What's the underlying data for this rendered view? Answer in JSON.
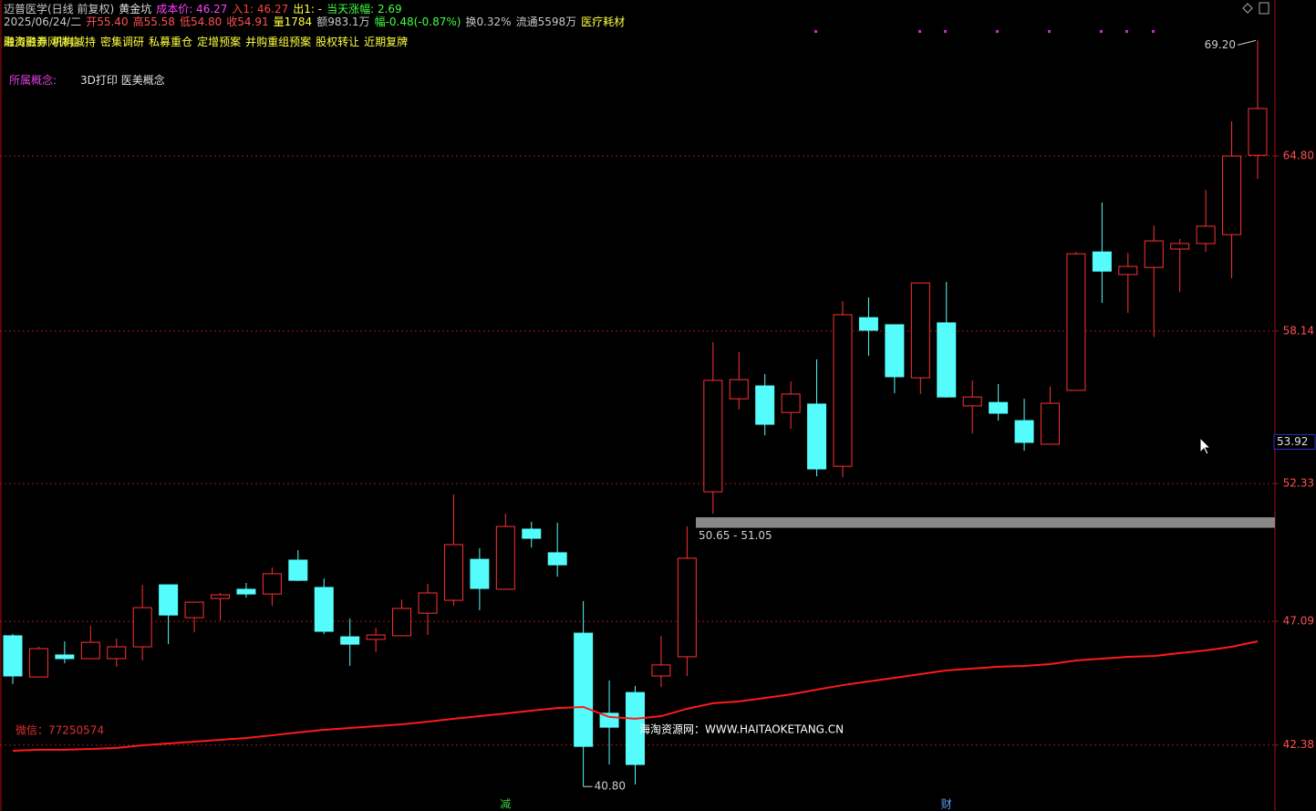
{
  "header": {
    "line1": [
      {
        "text": "迈普医学(日线 前复权)",
        "color": "#c8c8c8"
      },
      {
        "text": "黄金坑",
        "color": "#e0e0e0"
      },
      {
        "text": "成本价: 46.27",
        "color": "#ff40ff"
      },
      {
        "text": "入1: 46.27",
        "color": "#ff4040"
      },
      {
        "text": "出1: -",
        "color": "#ffff40"
      },
      {
        "text": "当天涨幅: 2.69",
        "color": "#40ff40"
      }
    ],
    "line2": [
      {
        "text": "2025/06/24/二",
        "color": "#c8c8c8"
      },
      {
        "text": "开55.40",
        "color": "#ff5050"
      },
      {
        "text": "高55.58",
        "color": "#ff5050"
      },
      {
        "text": "低54.80",
        "color": "#ff5050"
      },
      {
        "text": "收54.91",
        "color": "#ff5050"
      },
      {
        "text": "量1784",
        "color": "#ffff40"
      },
      {
        "text": "额983.1万",
        "color": "#c8c8c8"
      },
      {
        "text": "幅-0.48(-0.87%)",
        "color": "#40ff40"
      },
      {
        "text": "换0.32%",
        "color": "#c8c8c8"
      },
      {
        "text": "流通5598万",
        "color": "#c8c8c8"
      },
      {
        "text": "医疗耗材",
        "color": "#ffff40"
      }
    ],
    "overlay": "海淘资源网微信",
    "tags": [
      "融资融券",
      "机构减持",
      "密集调研",
      "私募重仓",
      "定增预案",
      "并购重组预案",
      "股权转让",
      "近期复牌"
    ],
    "concept_label": "所属概念:",
    "concepts": "3D打印 医美概念"
  },
  "chart_data": {
    "type": "candlestick",
    "categories": [
      null,
      null,
      null,
      null,
      null,
      null,
      null,
      null,
      null,
      null,
      null,
      null,
      null,
      null,
      null,
      null,
      null,
      null,
      null,
      "减",
      null,
      null,
      null,
      null,
      null,
      null,
      null,
      null,
      null,
      null,
      null,
      null,
      null,
      null,
      null,
      null,
      "财",
      null,
      null,
      null,
      null,
      null,
      null,
      null,
      null,
      null,
      null,
      null,
      null
    ],
    "open": [
      46.54,
      44.97,
      45.81,
      45.67,
      45.67,
      46.12,
      48.48,
      47.23,
      47.96,
      48.31,
      48.13,
      49.42,
      48.38,
      46.5,
      46.4,
      46.54,
      47.4,
      47.89,
      49.45,
      48.31,
      50.6,
      49.7,
      46.64,
      43.59,
      44.38,
      45.01,
      45.74,
      52.02,
      55.56,
      56.05,
      55.04,
      55.36,
      52.99,
      58.65,
      58.38,
      56.36,
      58.45,
      55.29,
      55.42,
      54.73,
      53.83,
      55.88,
      61.15,
      60.29,
      60.56,
      61.26,
      61.47,
      61.81,
      64.83
    ],
    "high": [
      46.61,
      46.12,
      46.33,
      46.92,
      46.43,
      48.48,
      48.48,
      47.82,
      48.17,
      48.55,
      49.14,
      49.8,
      48.72,
      47.2,
      46.85,
      47.92,
      48.52,
      51.92,
      49.87,
      51.19,
      50.88,
      50.84,
      47.86,
      44.84,
      44.63,
      46.54,
      50.7,
      57.72,
      57.34,
      56.5,
      56.22,
      57.06,
      59.28,
      59.42,
      58.38,
      59.97,
      60.01,
      56.26,
      56.12,
      55.56,
      56.02,
      61.15,
      63.03,
      61.12,
      62.16,
      61.64,
      63.52,
      66.12,
      69.2
    ],
    "low": [
      44.7,
      44.97,
      45.49,
      45.67,
      45.36,
      45.6,
      46.22,
      46.67,
      47.13,
      47.99,
      47.68,
      48.62,
      46.61,
      45.39,
      45.91,
      46.54,
      46.57,
      47.68,
      47.51,
      48.31,
      49.9,
      48.79,
      40.8,
      41.64,
      40.88,
      44.59,
      45.01,
      51.19,
      55.15,
      54.17,
      54.42,
      52.61,
      52.58,
      57.2,
      55.77,
      55.74,
      55.6,
      54.24,
      54.73,
      53.58,
      53.83,
      55.88,
      59.21,
      58.83,
      57.92,
      59.63,
      61.15,
      60.15,
      63.93
    ],
    "close": [
      45.01,
      46.05,
      45.67,
      46.29,
      46.12,
      47.61,
      47.33,
      47.82,
      48.1,
      48.13,
      48.9,
      48.65,
      46.71,
      46.22,
      46.57,
      47.58,
      48.17,
      50.01,
      48.34,
      50.7,
      50.25,
      49.24,
      42.33,
      43.06,
      41.64,
      45.43,
      49.49,
      56.26,
      56.29,
      54.59,
      55.74,
      52.89,
      58.76,
      58.17,
      56.4,
      59.97,
      55.63,
      55.63,
      55.01,
      53.9,
      55.39,
      61.08,
      60.42,
      60.6,
      61.57,
      61.47,
      62.13,
      64.8,
      66.61
    ],
    "up_color": "#ff3232",
    "down_color": "#54fcfc",
    "ma": {
      "color": "#ff1a1a",
      "values": [
        42.16,
        42.2,
        42.2,
        42.23,
        42.27,
        42.37,
        42.44,
        42.51,
        42.58,
        42.65,
        42.75,
        42.86,
        42.96,
        43.03,
        43.1,
        43.17,
        43.27,
        43.38,
        43.48,
        43.58,
        43.69,
        43.79,
        43.83,
        43.45,
        43.38,
        43.48,
        43.76,
        43.97,
        44.04,
        44.17,
        44.31,
        44.49,
        44.66,
        44.8,
        44.94,
        45.08,
        45.22,
        45.29,
        45.36,
        45.39,
        45.46,
        45.6,
        45.67,
        45.74,
        45.77,
        45.88,
        45.98,
        46.12,
        46.33
      ]
    },
    "ylim": [
      39.87,
      70.74
    ],
    "yticks": [
      {
        "value": 64.8,
        "label": "64.80"
      },
      58.14,
      52.33,
      47.09,
      42.38
    ],
    "grid": true,
    "cursor_price": 53.92,
    "zone": {
      "low": 50.65,
      "high": 51.05,
      "label": "50.65 - 51.05",
      "color": "#888888"
    },
    "extremes": [
      {
        "value": 69.2,
        "label": "69.20",
        "index": 48
      },
      {
        "value": 40.8,
        "label": "40.80",
        "index": 22
      }
    ],
    "wechat": "微信：77250574",
    "site": "海淘资源网：WWW.HAITAOKETANG.CN"
  }
}
